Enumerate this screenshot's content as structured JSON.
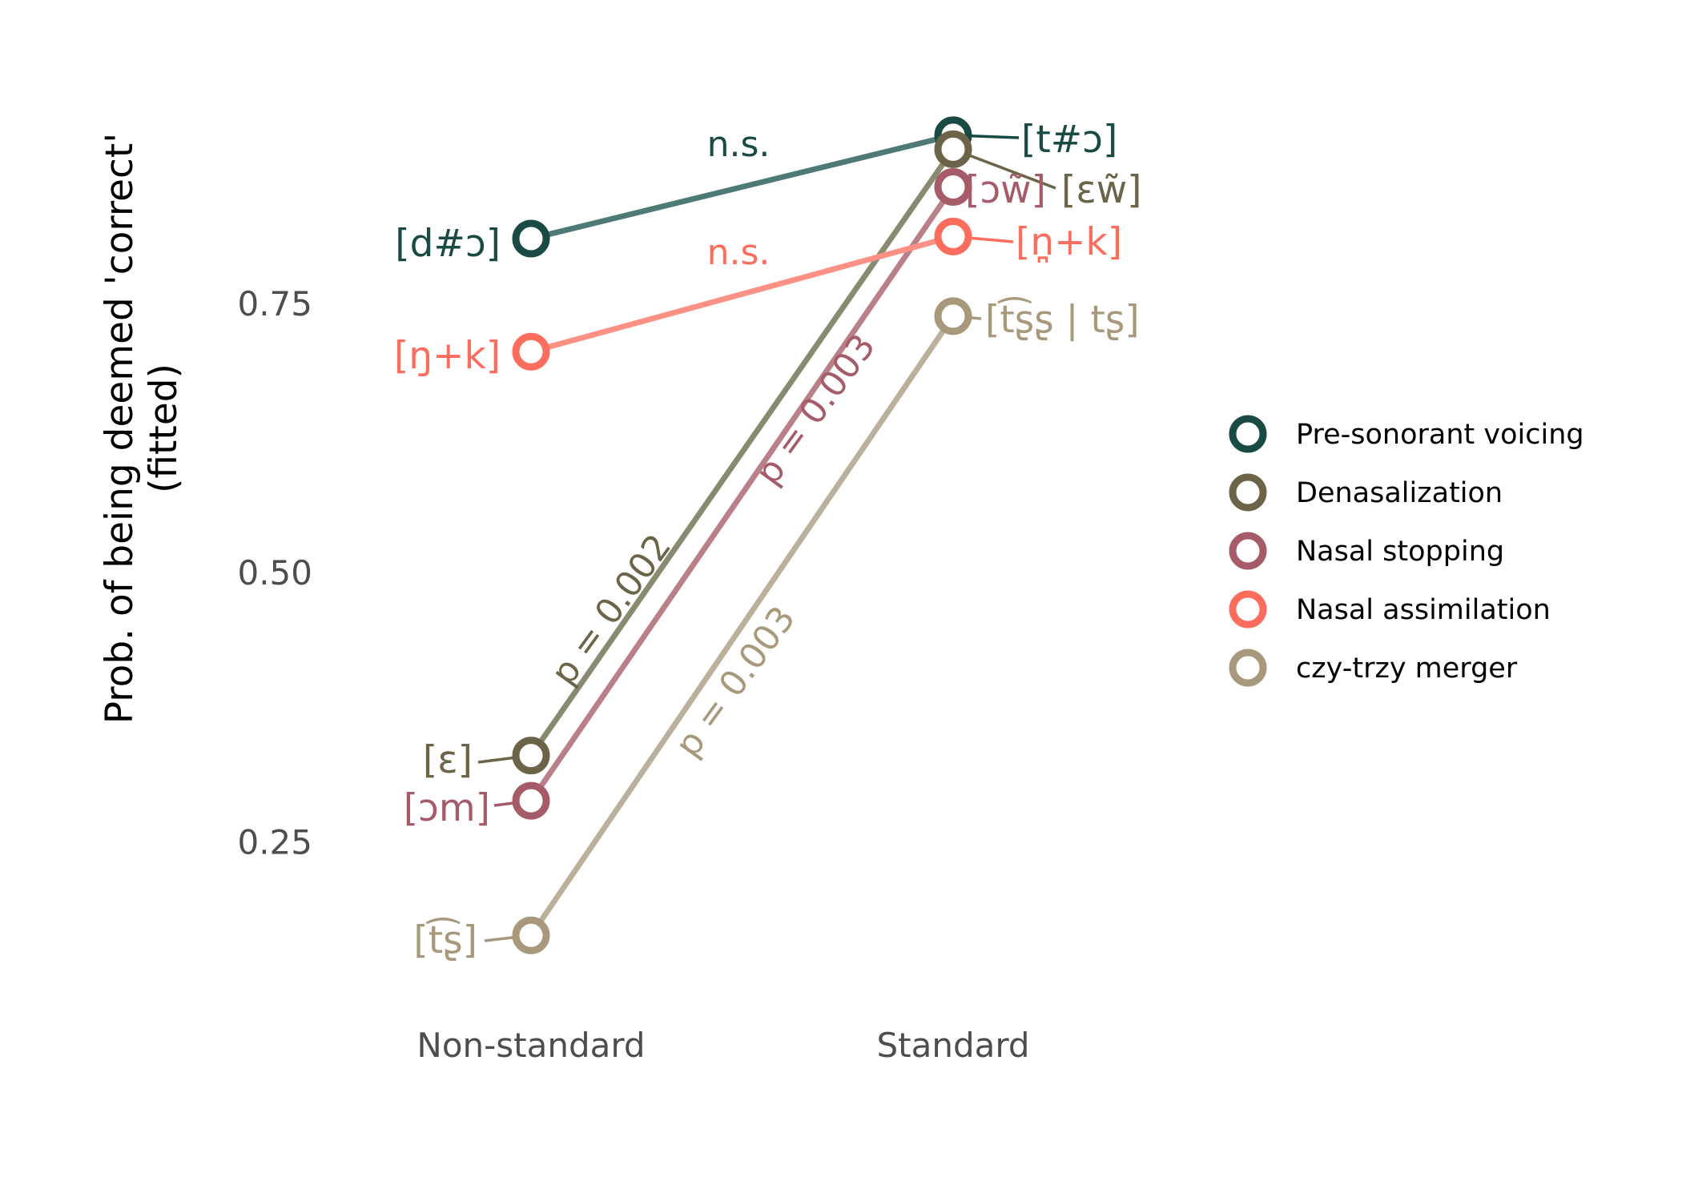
{
  "chart_data": {
    "type": "line",
    "ylabel_line1": "Prob. of being deemed 'correct'",
    "ylabel_line2": "(fitted)",
    "categories": [
      "Non-standard",
      "Standard"
    ],
    "ylim": [
      0.15,
      0.92
    ],
    "yticks": [
      0.25,
      0.5,
      0.75
    ],
    "ytick_labels": [
      "0.25",
      "0.50",
      "0.75"
    ],
    "grid": false,
    "legend_position": "right",
    "series": [
      {
        "name": "Pre-sonorant voicing",
        "color": "#1a4a44",
        "line_color": "#4d7a74",
        "values": [
          0.81,
          0.906
        ],
        "labels": [
          "[d#ɔ]",
          "[t#ɔ]"
        ],
        "annotation": "n.s."
      },
      {
        "name": "Denasalization",
        "color": "#6b6448",
        "line_color": "#8a8a70",
        "values": [
          0.33,
          0.893
        ],
        "labels": [
          "[ɛ]",
          "[ɛw̃]"
        ],
        "annotation": "p = 0.002"
      },
      {
        "name": "Nasal stopping",
        "color": "#a65c68",
        "line_color": "#b98088",
        "values": [
          0.288,
          0.858
        ],
        "labels": [
          "[ɔm]",
          "[ɔw̃]"
        ],
        "annotation": "p = 0.003"
      },
      {
        "name": "Nasal assimilation",
        "color": "#fd6d5d",
        "line_color": "#fd9185",
        "values": [
          0.705,
          0.812
        ],
        "labels": [
          "[ŋ+k]",
          "[n̪+k]"
        ],
        "annotation": "n.s."
      },
      {
        "name": "czy-trzy merger",
        "color": "#a8997c",
        "line_color": "#bbb09c",
        "values": [
          0.163,
          0.738
        ],
        "labels": [
          "[t͡ʂ]",
          "[t͡ʂʂ | tʂ]"
        ],
        "annotation": "p = 0.003"
      }
    ]
  }
}
